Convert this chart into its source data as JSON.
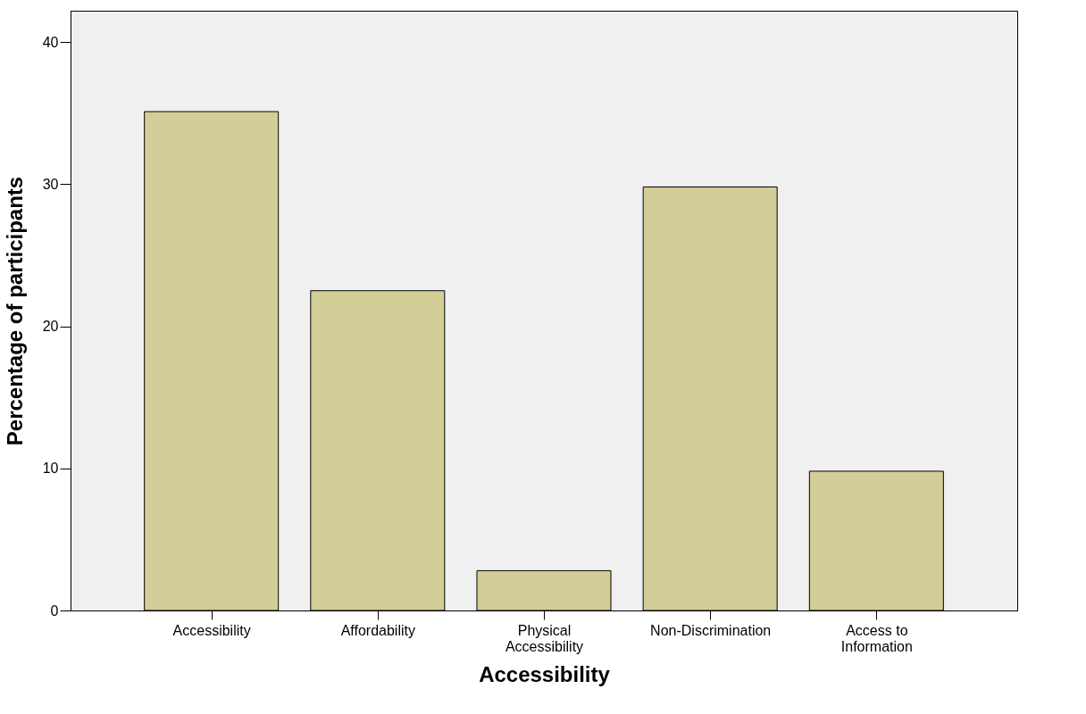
{
  "chart_data": {
    "type": "bar",
    "xlabel": "Accessibility",
    "ylabel": "Percentage of participants",
    "categories": [
      "Accessibility",
      "Affordability",
      "Physical\nAccessibility",
      "Non-Discrimination",
      "Access to\nInformation"
    ],
    "values": [
      35.1,
      22.5,
      2.8,
      29.8,
      9.8
    ],
    "color": "#d3ce97",
    "ylim": [
      0,
      42.2
    ],
    "yticks": [
      0,
      10,
      20,
      30,
      40
    ],
    "grid": false
  }
}
